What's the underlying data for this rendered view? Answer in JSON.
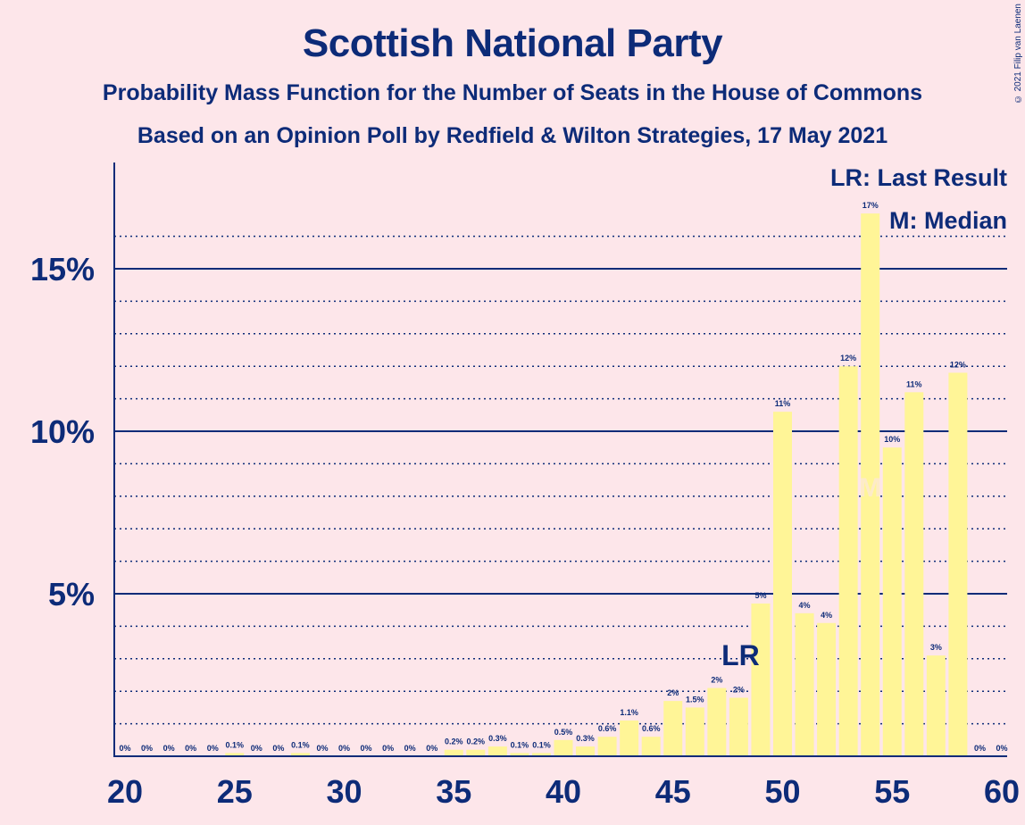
{
  "title": "Scottish National Party",
  "subtitle": "Probability Mass Function for the Number of Seats in the House of Commons",
  "subtitle2": "Based on an Opinion Poll by Redfield & Wilton Strategies, 17 May 2021",
  "copyright": "© 2021 Filip van Laenen",
  "legend": {
    "last_result": "LR: Last Result",
    "median": "M: Median"
  },
  "colors": {
    "bar": "#fff597",
    "axis": "#0d2b78",
    "background": "#fde6ea"
  },
  "chart_data": {
    "type": "bar",
    "x": [
      20,
      21,
      22,
      23,
      24,
      25,
      26,
      27,
      28,
      29,
      30,
      31,
      32,
      33,
      34,
      35,
      36,
      37,
      38,
      39,
      40,
      41,
      42,
      43,
      44,
      45,
      46,
      47,
      48,
      49,
      50,
      51,
      52,
      53,
      54,
      55,
      56,
      57,
      58,
      59,
      60
    ],
    "values": [
      0,
      0,
      0,
      0,
      0,
      0.1,
      0,
      0,
      0.1,
      0,
      0,
      0,
      0,
      0,
      0,
      0.2,
      0.2,
      0.3,
      0.1,
      0.1,
      0.5,
      0.3,
      0.6,
      1.1,
      0.6,
      1.7,
      1.5,
      2.1,
      1.8,
      4.7,
      10.6,
      4.4,
      4.1,
      12.0,
      16.7,
      9.5,
      11.2,
      3.1,
      11.8,
      0,
      0
    ],
    "labels": [
      "0%",
      "0%",
      "0%",
      "0%",
      "0%",
      "0.1%",
      "0%",
      "0%",
      "0.1%",
      "0%",
      "0%",
      "0%",
      "0%",
      "0%",
      "0%",
      "0.2%",
      "0.2%",
      "0.3%",
      "0.1%",
      "0.1%",
      "0.5%",
      "0.3%",
      "0.6%",
      "1.1%",
      "0.6%",
      "2%",
      "1.5%",
      "2%",
      "2%",
      "5%",
      "11%",
      "4%",
      "4%",
      "12%",
      "17%",
      "10%",
      "11%",
      "3%",
      "12%",
      "0%",
      "0%"
    ],
    "x_ticks": [
      20,
      25,
      30,
      35,
      40,
      45,
      50,
      55,
      60
    ],
    "y_ticks": [
      5,
      10,
      15
    ],
    "y_tick_labels": [
      "5%",
      "10%",
      "15%"
    ],
    "ylim": [
      0,
      17.5
    ],
    "last_result": 48,
    "last_result_label": "LR",
    "median": 54,
    "median_label": "M",
    "grid": "solid major lines every 5%, dotted minor lines every 1%"
  }
}
